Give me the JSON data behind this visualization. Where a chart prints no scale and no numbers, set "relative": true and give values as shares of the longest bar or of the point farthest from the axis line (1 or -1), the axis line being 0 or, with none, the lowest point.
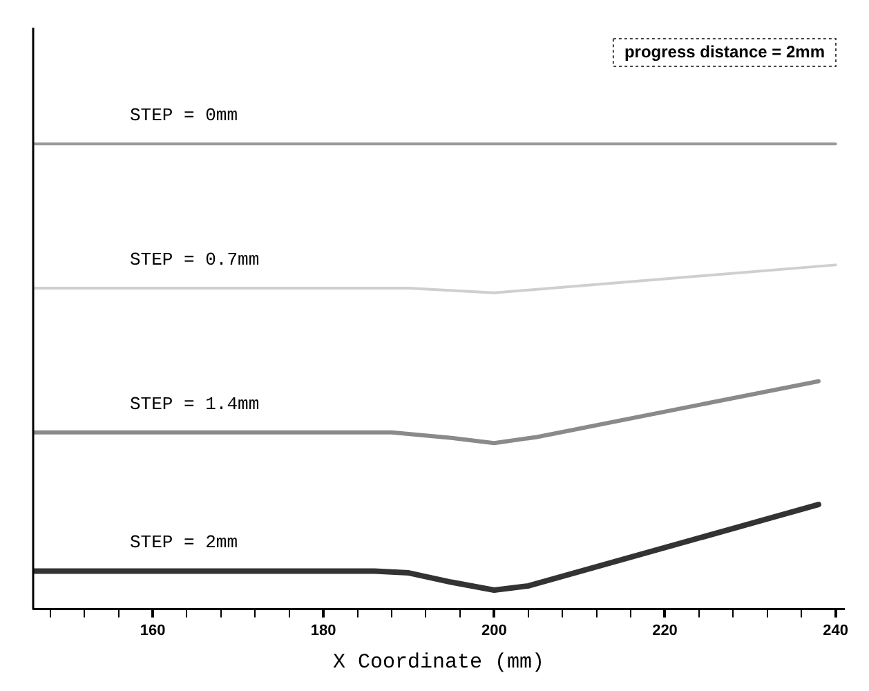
{
  "chart_data": {
    "type": "line",
    "relative": true,
    "xlabel": "X Coordinate (mm)",
    "xlim": [
      146,
      241
    ],
    "xticks": [
      {
        "value": 148,
        "label": null
      },
      {
        "value": 152,
        "label": null
      },
      {
        "value": 156,
        "label": null
      },
      160,
      {
        "value": 164,
        "label": null
      },
      {
        "value": 168,
        "label": null
      },
      {
        "value": 172,
        "label": null
      },
      {
        "value": 176,
        "label": null
      },
      180,
      {
        "value": 184,
        "label": null
      },
      {
        "value": 188,
        "label": null
      },
      {
        "value": 192,
        "label": null
      },
      {
        "value": 196,
        "label": null
      },
      200,
      {
        "value": 204,
        "label": null
      },
      {
        "value": 208,
        "label": null
      },
      {
        "value": 212,
        "label": null
      },
      {
        "value": 216,
        "label": null
      },
      220,
      {
        "value": 224,
        "label": null
      },
      {
        "value": 228,
        "label": null
      },
      {
        "value": 232,
        "label": null
      },
      {
        "value": 236,
        "label": null
      },
      240
    ],
    "tick_labels": "x",
    "grid": false,
    "legend": false,
    "marker": "none",
    "annotations": [
      "progress distance = 2mm"
    ],
    "series": [
      {
        "name": "STEP = 0mm",
        "color": "#9a9a9a",
        "x": [
          146,
          240
        ],
        "values": [
          1,
          1
        ]
      },
      {
        "name": "STEP = 0.7mm",
        "color": "#cfcfcf",
        "x": [
          146,
          190,
          200,
          240
        ],
        "values": [
          0.69,
          0.69,
          0.68,
          0.74
        ]
      },
      {
        "name": "STEP = 1.4mm",
        "color": "#8a8a8a",
        "x": [
          146,
          188,
          195,
          200,
          205,
          238
        ],
        "values": [
          0.38,
          0.38,
          0.368,
          0.357,
          0.37,
          0.49
        ]
      },
      {
        "name": "STEP = 2mm",
        "color": "#333333",
        "x": [
          146,
          186,
          190,
          195,
          200,
          204,
          238
        ],
        "values": [
          0.082,
          0.082,
          0.078,
          0.058,
          0.041,
          0.05,
          0.225
        ]
      }
    ]
  }
}
